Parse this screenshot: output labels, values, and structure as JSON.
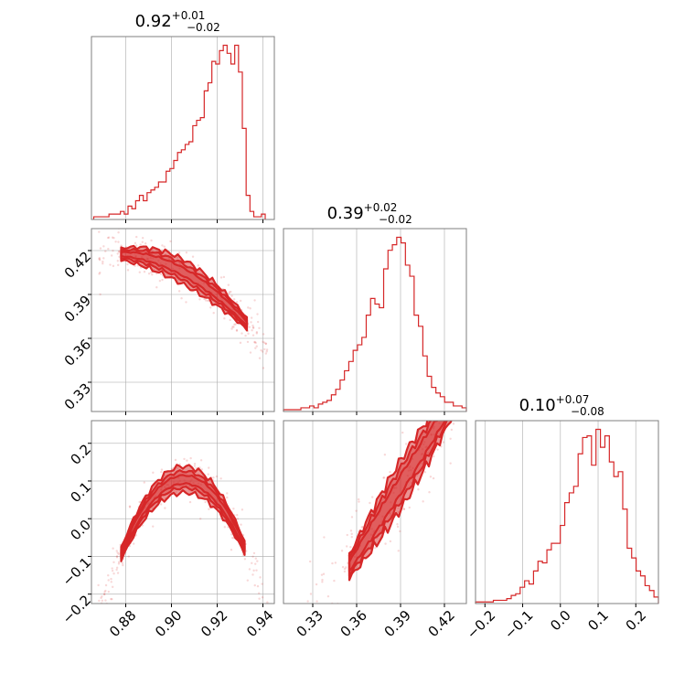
{
  "figure": {
    "type": "corner_plot",
    "color": "#d62728"
  },
  "chart_data": [
    {
      "id": "p0",
      "type": "histogram",
      "title": {
        "main": "0.92",
        "sup": "+0.01",
        "sub": "−0.02"
      },
      "xlim": [
        0.865,
        0.945
      ],
      "bin_edges_range": [
        0.866,
        0.941
      ],
      "counts": [
        1,
        1,
        1,
        1,
        2,
        2,
        2,
        3,
        2,
        5,
        4,
        7,
        9,
        7,
        10,
        11,
        12,
        14,
        14,
        18,
        19,
        22,
        25,
        26,
        28,
        29,
        35,
        37,
        38,
        48,
        51,
        59,
        58,
        63,
        65,
        62,
        58,
        65,
        55,
        34,
        9,
        3,
        1,
        1,
        2
      ],
      "grid_x": [
        0.88,
        0.9,
        0.92,
        0.94
      ]
    },
    {
      "id": "p1",
      "type": "contour_2d",
      "xlim": [
        0.865,
        0.945
      ],
      "ylim": [
        0.31,
        0.435
      ],
      "yticks": [
        0.33,
        0.36,
        0.39,
        0.42
      ],
      "ytick_labels": [
        "0.33",
        "0.36",
        "0.39",
        "0.42"
      ],
      "grid_x": [
        0.88,
        0.9,
        0.92,
        0.94
      ],
      "curve": {
        "a": 0.3894,
        "b": -1.3,
        "c": -15.0,
        "x0": 0.92
      },
      "x_range": [
        0.878,
        0.933
      ],
      "widths": [
        0.0028,
        0.0055,
        0.0085
      ],
      "outlier_x": [
        0.868,
        0.942
      ]
    },
    {
      "id": "p2",
      "type": "histogram",
      "title": {
        "main": "0.39",
        "sup": "+0.02",
        "sub": "−0.02"
      },
      "xlim": [
        0.31,
        0.435
      ],
      "bin_edges_range": [
        0.31,
        0.435
      ],
      "counts": [
        1,
        1,
        1,
        1,
        2,
        2,
        3,
        2,
        4,
        5,
        6,
        9,
        12,
        17,
        22,
        27,
        33,
        36,
        40,
        52,
        61,
        58,
        56,
        77,
        87,
        90,
        94,
        91,
        79,
        73,
        52,
        46,
        30,
        19,
        13,
        10,
        8,
        5,
        5,
        3,
        3,
        2
      ],
      "grid_x": [
        0.33,
        0.36,
        0.39,
        0.42
      ]
    },
    {
      "id": "p3",
      "type": "contour_2d",
      "xlim": [
        0.865,
        0.945
      ],
      "ylim": [
        -0.225,
        0.26
      ],
      "yticks": [
        -0.2,
        -0.1,
        0.0,
        0.1,
        0.2
      ],
      "ytick_labels": [
        "−0.2",
        "−0.1",
        "0.0",
        "0.1",
        "0.2"
      ],
      "xticks": [
        0.88,
        0.9,
        0.92,
        0.94
      ],
      "xtick_labels": [
        "0.88",
        "0.90",
        "0.92",
        "0.94"
      ],
      "grid_x": [
        0.88,
        0.9,
        0.92,
        0.94
      ],
      "curve": {
        "a": 0.05,
        "b": -7.5,
        "c": -260.0,
        "x0": 0.92
      },
      "x_range": [
        0.878,
        0.932
      ],
      "widths": [
        0.011,
        0.022,
        0.035
      ],
      "outlier_x": [
        0.868,
        0.942
      ]
    },
    {
      "id": "p4",
      "type": "contour_2d",
      "xlim": [
        0.31,
        0.435
      ],
      "ylim": [
        -0.225,
        0.26
      ],
      "xticks": [
        0.33,
        0.36,
        0.39,
        0.42
      ],
      "xtick_labels": [
        "0.33",
        "0.36",
        "0.39",
        "0.42"
      ],
      "grid_x": [
        0.33,
        0.36,
        0.39,
        0.42
      ],
      "curve": {
        "a": 0.09,
        "b": 6.2,
        "c": 0.0,
        "x0": 0.39
      },
      "x_range": [
        0.355,
        0.43
      ],
      "widths": [
        0.025,
        0.045,
        0.065
      ],
      "outlier_x": [
        0.315,
        0.44
      ]
    },
    {
      "id": "p5",
      "type": "histogram",
      "title": {
        "main": "0.10",
        "sup": "+0.07",
        "sub": "−0.08"
      },
      "xlim": [
        -0.225,
        0.26
      ],
      "bin_edges_range": [
        -0.225,
        0.26
      ],
      "counts": [
        1,
        1,
        1,
        1,
        2,
        2,
        2,
        3,
        5,
        6,
        10,
        14,
        12,
        20,
        26,
        25,
        33,
        37,
        37,
        48,
        62,
        68,
        72,
        92,
        102,
        103,
        85,
        107,
        96,
        103,
        87,
        78,
        81,
        58,
        34,
        28,
        20,
        17,
        11,
        8,
        4
      ],
      "grid_x": [
        -0.2,
        -0.1,
        0.0,
        0.1,
        0.2
      ],
      "xticks": [
        -0.2,
        -0.1,
        0.0,
        0.1,
        0.2
      ],
      "xtick_labels": [
        "−0.2",
        "−0.1",
        "0.0",
        "0.1",
        "0.2"
      ]
    }
  ]
}
